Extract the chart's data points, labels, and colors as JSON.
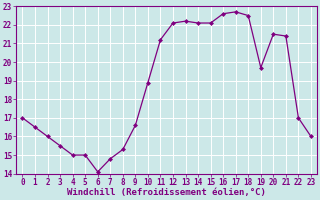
{
  "x": [
    0,
    1,
    2,
    3,
    4,
    5,
    6,
    7,
    8,
    9,
    10,
    11,
    12,
    13,
    14,
    15,
    16,
    17,
    18,
    19,
    20,
    21,
    22,
    23
  ],
  "y": [
    17.0,
    16.5,
    16.0,
    15.5,
    15.0,
    15.0,
    14.1,
    14.8,
    15.3,
    16.6,
    18.9,
    21.2,
    22.1,
    22.2,
    22.1,
    22.1,
    22.6,
    22.7,
    22.5,
    19.7,
    21.5,
    21.4,
    17.0,
    16.0
  ],
  "line_color": "#800080",
  "marker": "D",
  "marker_size": 2,
  "bg_color": "#cce8e8",
  "grid_color": "#b0d8d8",
  "xlabel": "Windchill (Refroidissement éolien,°C)",
  "tick_color": "#800080",
  "ylim": [
    14,
    23
  ],
  "xlim": [
    -0.5,
    23.5
  ],
  "yticks": [
    14,
    15,
    16,
    17,
    18,
    19,
    20,
    21,
    22,
    23
  ],
  "xticks": [
    0,
    1,
    2,
    3,
    4,
    5,
    6,
    7,
    8,
    9,
    10,
    11,
    12,
    13,
    14,
    15,
    16,
    17,
    18,
    19,
    20,
    21,
    22,
    23
  ],
  "tick_fontsize": 5.5,
  "xlabel_fontsize": 6.5
}
